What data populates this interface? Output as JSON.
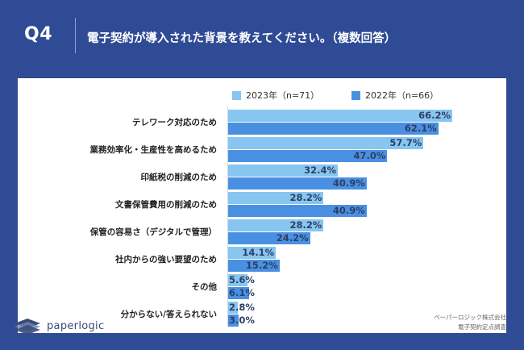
{
  "header": {
    "question_number": "Q4",
    "question_text": "電子契約が導入された背景を教えてください。（複数回答）"
  },
  "colors": {
    "background": "#2f4b95",
    "series_2023": "#86c6f0",
    "series_2022": "#4a90e2"
  },
  "chart_data": {
    "type": "bar",
    "orientation": "horizontal",
    "categories": [
      "テレワーク対応のため",
      "業務効率化・生産性を高めるため",
      "印紙税の削減のため",
      "文書保管費用の削減のため",
      "保管の容易さ（デジタルで管理）",
      "社内からの強い要望のため",
      "その他",
      "分からない/答えられない"
    ],
    "series": [
      {
        "name": "2023年（n=71）",
        "values": [
          66.2,
          57.7,
          32.4,
          28.2,
          28.2,
          14.1,
          5.6,
          2.8
        ]
      },
      {
        "name": "2022年（n=66）",
        "values": [
          62.1,
          47.0,
          40.9,
          40.9,
          24.2,
          15.2,
          6.1,
          3.0
        ]
      }
    ],
    "value_labels": [
      [
        "66.2%",
        "57.7%",
        "32.4%",
        "28.2%",
        "28.2%",
        "14.1%",
        "5.6%",
        "2.8%"
      ],
      [
        "62.1%",
        "47.0%",
        "40.9%",
        "40.9%",
        "24.2%",
        "15.2%",
        "6.1%",
        "3.0%"
      ]
    ],
    "legend_position": "top",
    "xlim": [
      0,
      70
    ]
  },
  "footer": {
    "logo_text": "paperlogic",
    "source_line1": "ペーパーロジック株式会社",
    "source_line2": "電子契約定点調査"
  }
}
